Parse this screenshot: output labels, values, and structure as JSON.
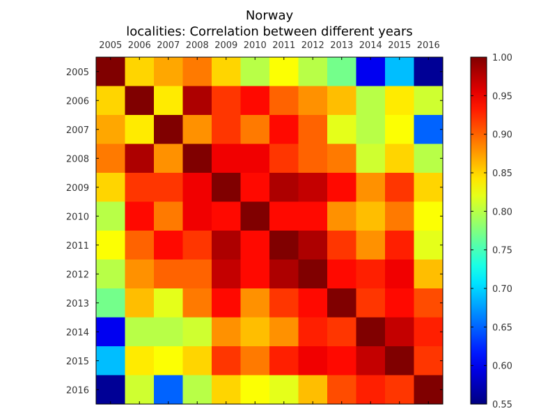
{
  "chart_data": {
    "type": "heatmap",
    "title": "Norway",
    "subtitle": "localities: Correlation between different years",
    "xlabel": "",
    "ylabel": "",
    "x_ticks_position": "top",
    "categories": [
      "2005",
      "2006",
      "2007",
      "2008",
      "2009",
      "2010",
      "2011",
      "2012",
      "2013",
      "2014",
      "2015",
      "2016"
    ],
    "matrix": [
      [
        1.0,
        0.85,
        0.87,
        0.89,
        0.85,
        0.8,
        0.83,
        0.8,
        0.77,
        0.6,
        0.69,
        0.56
      ],
      [
        0.85,
        1.0,
        0.84,
        0.98,
        0.92,
        0.94,
        0.9,
        0.88,
        0.86,
        0.8,
        0.84,
        0.81
      ],
      [
        0.87,
        0.84,
        1.0,
        0.88,
        0.92,
        0.89,
        0.94,
        0.9,
        0.82,
        0.8,
        0.83,
        0.65
      ],
      [
        0.89,
        0.98,
        0.88,
        1.0,
        0.95,
        0.95,
        0.92,
        0.9,
        0.89,
        0.81,
        0.85,
        0.8
      ],
      [
        0.85,
        0.92,
        0.92,
        0.95,
        1.0,
        0.94,
        0.98,
        0.97,
        0.94,
        0.88,
        0.92,
        0.85
      ],
      [
        0.8,
        0.94,
        0.89,
        0.95,
        0.94,
        1.0,
        0.94,
        0.94,
        0.88,
        0.86,
        0.89,
        0.83
      ],
      [
        0.83,
        0.9,
        0.94,
        0.92,
        0.98,
        0.94,
        1.0,
        0.98,
        0.92,
        0.88,
        0.93,
        0.82
      ],
      [
        0.8,
        0.88,
        0.9,
        0.9,
        0.97,
        0.94,
        0.98,
        1.0,
        0.94,
        0.93,
        0.95,
        0.86
      ],
      [
        0.77,
        0.86,
        0.82,
        0.89,
        0.94,
        0.88,
        0.92,
        0.94,
        1.0,
        0.92,
        0.94,
        0.91
      ],
      [
        0.6,
        0.8,
        0.8,
        0.81,
        0.88,
        0.86,
        0.88,
        0.93,
        0.92,
        1.0,
        0.97,
        0.93
      ],
      [
        0.69,
        0.84,
        0.83,
        0.85,
        0.92,
        0.89,
        0.93,
        0.95,
        0.94,
        0.97,
        1.0,
        0.92
      ],
      [
        0.56,
        0.81,
        0.65,
        0.8,
        0.85,
        0.83,
        0.82,
        0.86,
        0.91,
        0.93,
        0.92,
        1.0
      ]
    ],
    "colormap": "jet",
    "vmin": 0.55,
    "vmax": 1.0,
    "colorbar": {
      "ticks": [
        "0.55",
        "0.60",
        "0.65",
        "0.70",
        "0.75",
        "0.80",
        "0.85",
        "0.90",
        "0.95",
        "1.00"
      ],
      "placement": "right"
    },
    "grid": false
  }
}
